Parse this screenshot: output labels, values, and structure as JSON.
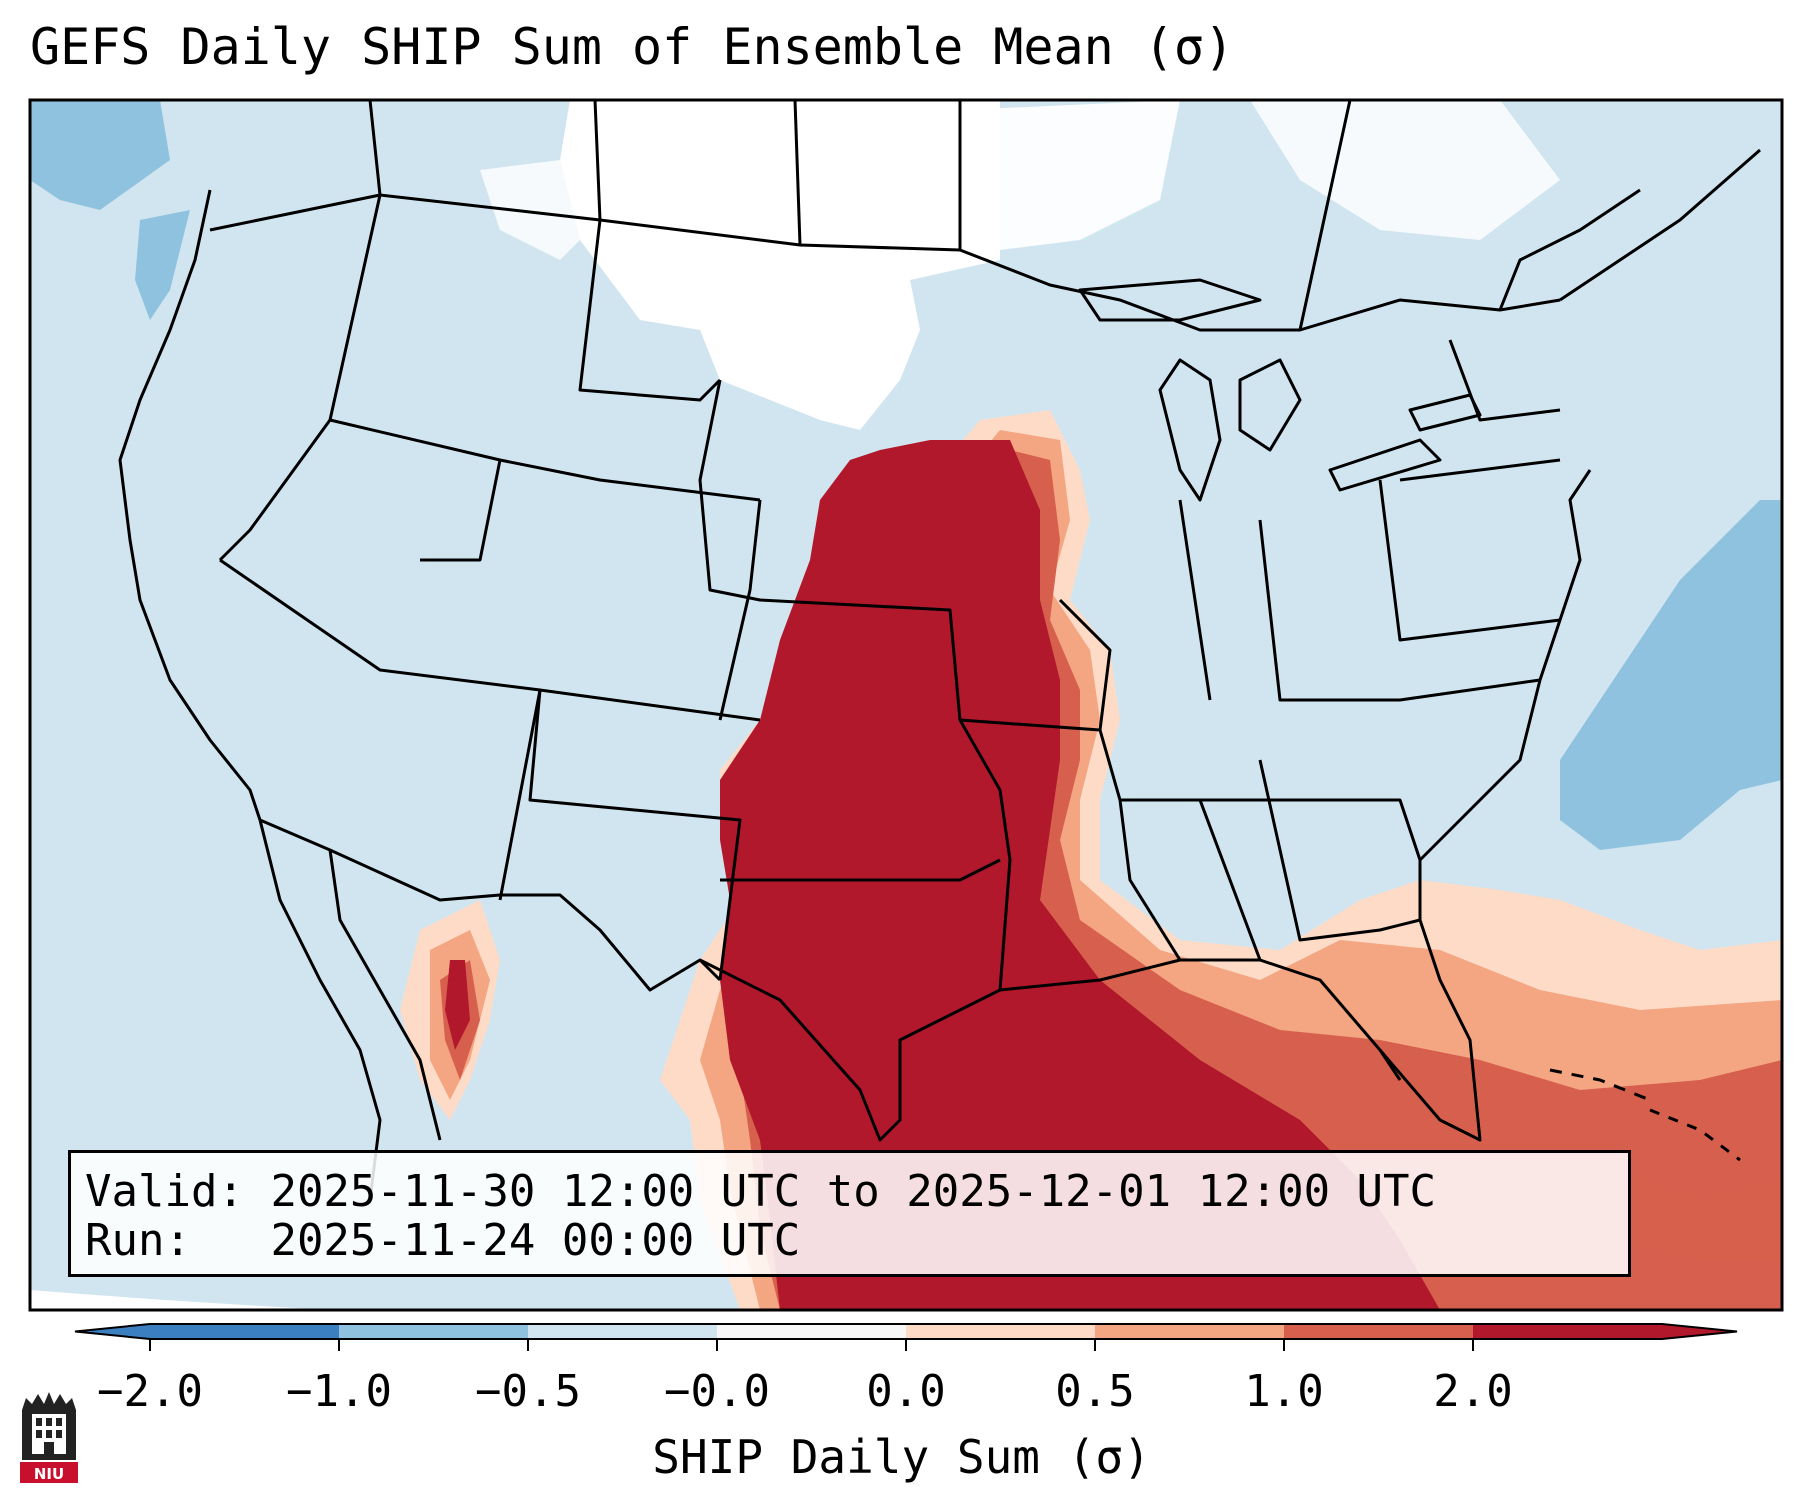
{
  "title": "GEFS Daily SHIP Sum of Ensemble Mean (σ)",
  "info": {
    "valid_label": "Valid:",
    "valid_value": "2025-11-30 12:00 UTC to 2025-12-01 12:00 UTC",
    "run_label": "Run:",
    "run_value": "2025-11-24 00:00 UTC"
  },
  "colorbar": {
    "label": "SHIP Daily Sum (σ)",
    "ticks": [
      "−2.0",
      "−1.0",
      "−0.5",
      "−0.0",
      "0.0",
      "0.5",
      "1.0",
      "2.0"
    ],
    "colors": [
      "#3b7fc0",
      "#8fc2de",
      "#d1e5f0",
      "#f7f7f7",
      "#fddbc7",
      "#f4a582",
      "#d6604d",
      "#b2182b"
    ],
    "extend": "both"
  },
  "map": {
    "ocean_land_base": "#d1e5f0",
    "low_color": "#8fc2de",
    "neutral_color": "#ffffff",
    "high_colors": [
      "#fddbc7",
      "#f4a582",
      "#d6604d",
      "#b2182b"
    ]
  },
  "logo": {
    "text": "NIU"
  }
}
